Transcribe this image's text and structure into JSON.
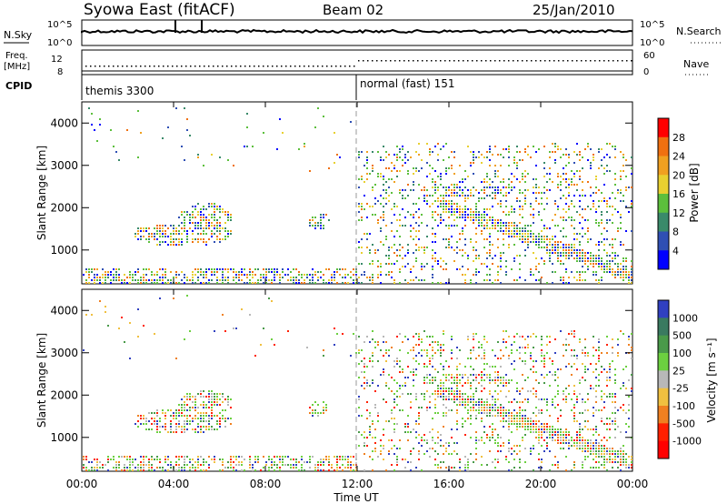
{
  "header": {
    "station": "Syowa East (fitACF)",
    "beam": "Beam 02",
    "date": "25/Jan/2010"
  },
  "panels": {
    "nsky": {
      "label": "N.Sky",
      "tick_top": "10^5",
      "tick_bottom": "10^0"
    },
    "nsearch": {
      "label": "N.Search",
      "tick_top": "10^5",
      "tick_bottom": "10^0"
    },
    "freq": {
      "label_line1": "Freq.",
      "label_line2": "[MHz]",
      "tick_top": "12",
      "tick_bottom": "8"
    },
    "nave": {
      "label": "Nave",
      "tick_top": "60",
      "tick_bottom": "0"
    },
    "cpid": {
      "label": "CPID",
      "mode1": "themis 3300",
      "mode2": "normal (fast) 151"
    }
  },
  "chart_data": [
    {
      "type": "heatmap",
      "title": "",
      "xlabel": "Time UT",
      "ylabel": "Slant Range [km]",
      "x_ticks": [
        "00:00",
        "04:00",
        "08:00",
        "12:00",
        "16:00",
        "20:00",
        "00:00"
      ],
      "y_ticks": [
        1000,
        2000,
        3000,
        4000
      ],
      "ylim": [
        200,
        4500
      ],
      "colorbar": {
        "label": "Power [dB]",
        "ticks": [
          "4",
          "8",
          "12",
          "16",
          "20",
          "24",
          "28"
        ],
        "range": [
          0,
          30
        ],
        "colors": [
          "#0000ff",
          "#2f4fb4",
          "#3a8a6a",
          "#5cbf3c",
          "#e8d030",
          "#f0a020",
          "#f07010",
          "#ff0000"
        ]
      }
    },
    {
      "type": "heatmap",
      "title": "",
      "xlabel": "Time UT",
      "ylabel": "Slant Range [km]",
      "x_ticks": [
        "00:00",
        "04:00",
        "08:00",
        "12:00",
        "16:00",
        "20:00",
        "00:00"
      ],
      "y_ticks": [
        1000,
        2000,
        3000,
        4000
      ],
      "ylim": [
        200,
        4500
      ],
      "colorbar": {
        "label": "Velocity [m s⁻¹]",
        "ticks": [
          "1000",
          "500",
          "100",
          "25",
          "-25",
          "-100",
          "-500",
          "-1000"
        ],
        "colors": [
          "#3040c0",
          "#3a7a60",
          "#4a9a4a",
          "#6cd040",
          "#b8b8b8",
          "#f0c040",
          "#f08020",
          "#ff2000",
          "#ff0000"
        ]
      }
    }
  ]
}
